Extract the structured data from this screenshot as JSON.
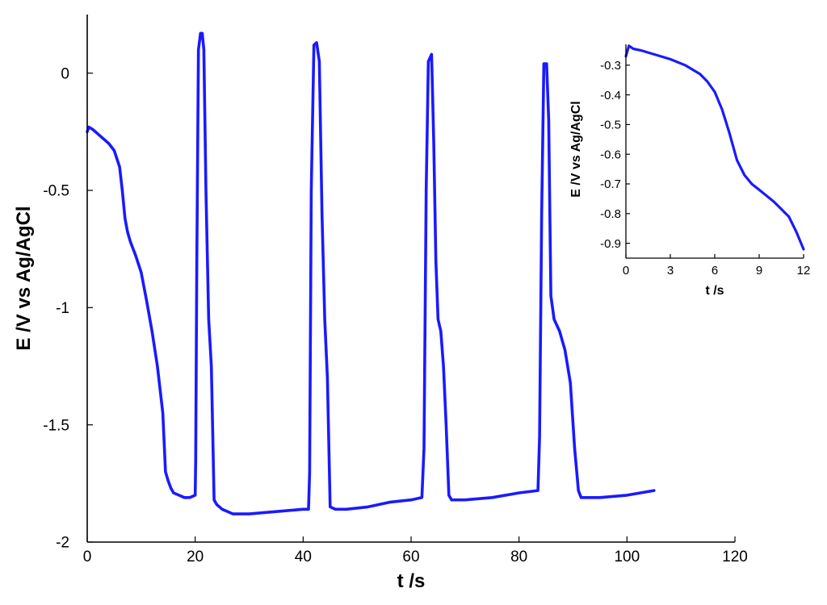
{
  "chart_data": [
    {
      "type": "line",
      "title": "",
      "xlabel": "t /s",
      "ylabel": "E /V vs Ag/AgCl",
      "xlim": [
        0,
        120
      ],
      "ylim": [
        -2,
        0.25
      ],
      "xticks": [
        0,
        20,
        40,
        60,
        80,
        100,
        120
      ],
      "xtick_labels": [
        "0",
        "20",
        "40",
        "60",
        "80",
        "100",
        "120"
      ],
      "yticks": [
        0,
        -0.5,
        -1,
        -1.5,
        -2
      ],
      "ytick_labels": [
        "0",
        "-0.5",
        "-1",
        "-1.5",
        "-2"
      ],
      "grid": false,
      "legend": "none",
      "series": [
        {
          "color": "#1a1aff",
          "x": [
            0,
            0.3,
            1,
            2,
            3,
            4,
            5,
            6,
            6.5,
            7,
            7.5,
            8,
            9,
            10,
            11,
            12,
            13,
            14,
            14.5,
            15,
            15.5,
            16,
            17,
            18,
            19,
            20,
            20.1,
            20.3,
            20.6,
            21,
            21.3,
            21.6,
            22,
            22.5,
            23,
            23.5,
            24,
            25,
            27,
            30,
            35,
            40,
            41,
            41.2,
            41.5,
            42,
            42.5,
            43,
            43.5,
            44,
            44.5,
            45,
            46,
            48,
            52,
            56,
            60,
            62,
            62.4,
            62.8,
            63.2,
            63.8,
            64.2,
            64.6,
            65,
            65.5,
            66,
            66.5,
            67,
            67.5,
            70,
            75,
            80,
            83.5,
            83.8,
            84.2,
            84.6,
            85.1,
            85.5,
            85.9,
            86.5,
            87.5,
            88.5,
            89.5,
            90.3,
            91,
            91.5,
            92,
            95,
            100,
            105
          ],
          "y": [
            -0.25,
            -0.23,
            -0.24,
            -0.26,
            -0.28,
            -0.3,
            -0.33,
            -0.4,
            -0.5,
            -0.62,
            -0.68,
            -0.72,
            -0.78,
            -0.85,
            -0.97,
            -1.1,
            -1.25,
            -1.45,
            -1.7,
            -1.74,
            -1.77,
            -1.79,
            -1.8,
            -1.81,
            -1.81,
            -1.8,
            -1.65,
            -0.8,
            0.1,
            0.17,
            0.17,
            0.1,
            -0.5,
            -1.05,
            -1.25,
            -1.82,
            -1.84,
            -1.86,
            -1.88,
            -1.88,
            -1.87,
            -1.86,
            -1.86,
            -1.7,
            -0.5,
            0.12,
            0.13,
            0.05,
            -0.6,
            -1.05,
            -1.3,
            -1.85,
            -1.86,
            -1.86,
            -1.85,
            -1.83,
            -1.82,
            -1.81,
            -1.6,
            -0.5,
            0.05,
            0.08,
            -0.3,
            -0.8,
            -1.05,
            -1.1,
            -1.25,
            -1.5,
            -1.8,
            -1.82,
            -1.82,
            -1.81,
            -1.79,
            -1.78,
            -1.55,
            -0.6,
            0.04,
            0.04,
            -0.2,
            -0.95,
            -1.05,
            -1.1,
            -1.18,
            -1.32,
            -1.6,
            -1.78,
            -1.81,
            -1.81,
            -1.81,
            -1.8,
            -1.78
          ]
        }
      ]
    },
    {
      "type": "line",
      "title": "",
      "xlabel": "t /s",
      "ylabel": "E /V vs Ag/AgCl",
      "xlim": [
        0,
        12
      ],
      "ylim": [
        -0.95,
        -0.23
      ],
      "xticks": [
        0,
        3,
        6,
        9,
        12
      ],
      "xtick_labels": [
        "0",
        "3",
        "6",
        "9",
        "12"
      ],
      "yticks": [
        -0.3,
        -0.4,
        -0.5,
        -0.6,
        -0.7,
        -0.8,
        -0.9
      ],
      "ytick_labels": [
        "-0.3",
        "-0.4",
        "-0.5",
        "-0.6",
        "-0.7",
        "-0.8",
        "-0.9"
      ],
      "grid": false,
      "legend": "none",
      "series": [
        {
          "color": "#1a1aff",
          "x": [
            0,
            0.2,
            0.5,
            1,
            2,
            3,
            4,
            5,
            5.5,
            6,
            6.5,
            7,
            7.5,
            8,
            8.5,
            9,
            10,
            11,
            11.5,
            12
          ],
          "y": [
            -0.27,
            -0.235,
            -0.245,
            -0.25,
            -0.265,
            -0.28,
            -0.3,
            -0.33,
            -0.355,
            -0.39,
            -0.45,
            -0.53,
            -0.62,
            -0.67,
            -0.7,
            -0.72,
            -0.76,
            -0.81,
            -0.86,
            -0.92
          ]
        }
      ]
    }
  ]
}
